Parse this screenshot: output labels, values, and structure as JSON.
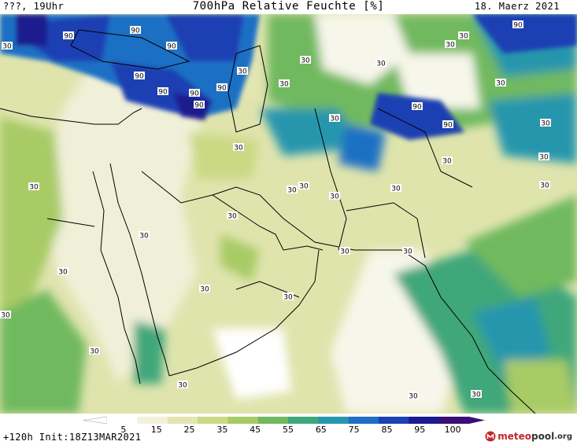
{
  "header": {
    "left": "???, 19Uhr",
    "title": "700hPa Relative Feuchte [%]",
    "date": "18. Maerz 2021"
  },
  "footer": {
    "init": "+120h Init:18Z13MAR2021",
    "logo_part1": "meteo",
    "logo_part2": "pool",
    "logo_part3": ".org"
  },
  "colorbar": {
    "ticks": [
      "5",
      "15",
      "25",
      "35",
      "45",
      "55",
      "65",
      "75",
      "85",
      "95",
      "100"
    ],
    "colors": [
      "#ffffff",
      "#f2f1dc",
      "#e2e6b0",
      "#cbd985",
      "#a8cb66",
      "#71b95f",
      "#3fa77a",
      "#2596ad",
      "#1f6fc4",
      "#1c41b3",
      "#1b1c8f",
      "#3a0f78"
    ]
  },
  "map_labels": {
    "contour_values": [
      "90",
      "30"
    ]
  }
}
